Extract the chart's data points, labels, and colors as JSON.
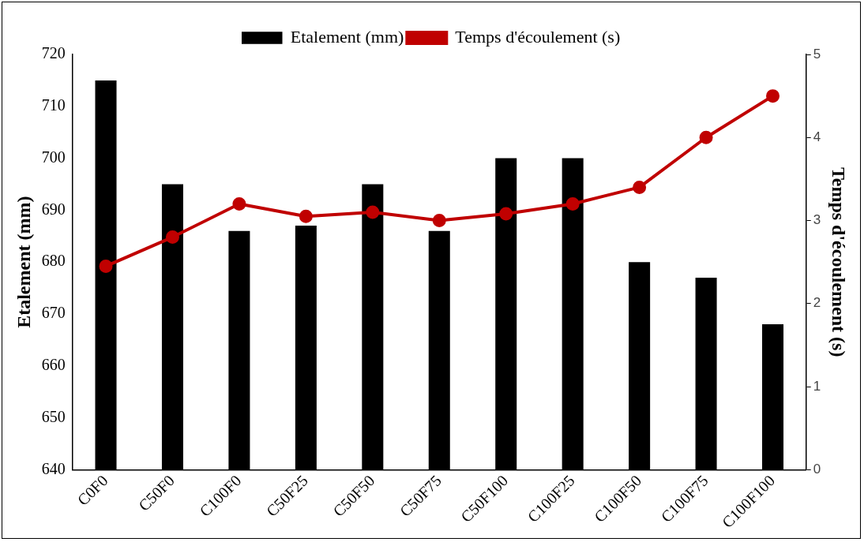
{
  "chart_data": {
    "type": "bar",
    "ylabel": "Etalement (mm)",
    "y2label": "Temps d'écoulement (s)",
    "categories": [
      "C0F0",
      "C50F0",
      "C100F0",
      "C50F25",
      "C50F50",
      "C50F75",
      "C50F100",
      "C100F25",
      "C100F50",
      "C100F75",
      "C100F100"
    ],
    "series": [
      {
        "name": "Etalement (mm)",
        "color": "#000000",
        "values": [
          715,
          695,
          686,
          687,
          695,
          686,
          700,
          700,
          680,
          677,
          668
        ]
      },
      {
        "name": "Temps d'écoulement (s)",
        "type": "line",
        "axis": "y2",
        "color": "#c00000",
        "marker": "circle",
        "values": [
          2.45,
          2.8,
          3.2,
          3.05,
          3.1,
          3.0,
          3.08,
          3.2,
          3.4,
          4.0,
          4.5
        ]
      }
    ],
    "ylim": [
      640,
      720
    ],
    "yticks": [
      640,
      650,
      660,
      670,
      680,
      690,
      700,
      710,
      720
    ],
    "y2lim": [
      0,
      5
    ],
    "y2ticks": [
      0,
      1,
      2,
      3,
      4,
      5
    ],
    "grid": false,
    "legend": "top"
  }
}
